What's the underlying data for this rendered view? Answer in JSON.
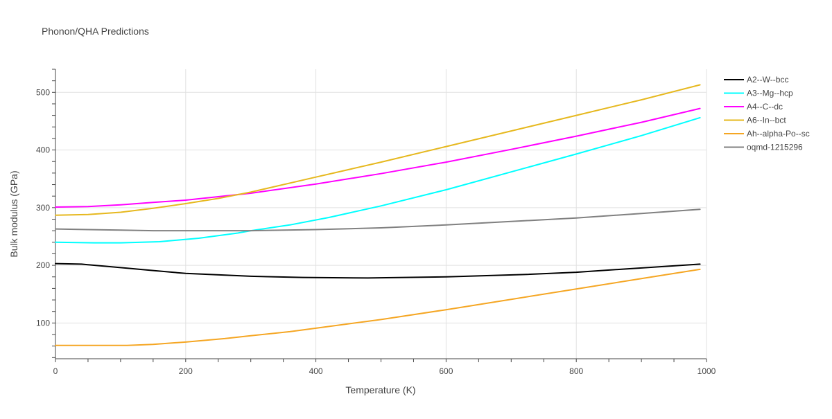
{
  "chart_data": {
    "type": "line",
    "title": "Phonon/QHA Predictions",
    "xlabel": "Temperature (K)",
    "ylabel": "Bulk modulus (GPa)",
    "xlim": [
      0,
      1000
    ],
    "ylim": [
      38,
      540
    ],
    "xticks": [
      0,
      200,
      400,
      600,
      800,
      1000
    ],
    "yticks": [
      100,
      200,
      300,
      400,
      500
    ],
    "xtick_labels": [
      "0",
      "200",
      "400",
      "600",
      "800",
      "1000"
    ],
    "ytick_labels": [
      "100",
      "200",
      "300",
      "400",
      "500"
    ],
    "grid": true,
    "legend_position": "top-right",
    "series": [
      {
        "name": "A2--W--bcc",
        "color": "#000000",
        "x": [
          0,
          40,
          100,
          150,
          200,
          300,
          380,
          480,
          600,
          720,
          800,
          880,
          990
        ],
        "y": [
          203,
          202,
          196,
          191,
          186,
          181,
          179,
          178,
          180,
          184,
          188,
          194,
          202
        ]
      },
      {
        "name": "A3--Mg--hcp",
        "color": "#00ffff",
        "x": [
          0,
          60,
          100,
          160,
          220,
          280,
          300,
          360,
          420,
          500,
          600,
          700,
          800,
          900,
          990
        ],
        "y": [
          240,
          239,
          239,
          241,
          247,
          256,
          260,
          270,
          283,
          303,
          331,
          362,
          393,
          425,
          456
        ]
      },
      {
        "name": "A4--C--dc",
        "color": "#ff00ff",
        "x": [
          0,
          50,
          100,
          150,
          200,
          250,
          300,
          400,
          500,
          600,
          700,
          800,
          900,
          990
        ],
        "y": [
          301,
          302,
          305,
          309,
          313,
          319,
          325,
          341,
          359,
          379,
          401,
          424,
          448,
          472
        ]
      },
      {
        "name": "A6--In--bct",
        "color": "#e6b81e",
        "x": [
          0,
          50,
          100,
          150,
          200,
          250,
          300,
          400,
          500,
          600,
          700,
          800,
          900,
          990
        ],
        "y": [
          287,
          288,
          292,
          299,
          307,
          316,
          327,
          353,
          379,
          406,
          433,
          460,
          487,
          513
        ]
      },
      {
        "name": "Ah--alpha-Po--sc",
        "color": "#f5a623",
        "x": [
          0,
          50,
          110,
          150,
          200,
          260,
          300,
          360,
          400,
          500,
          600,
          700,
          800,
          900,
          990
        ],
        "y": [
          61,
          61,
          61,
          63,
          67,
          73,
          78,
          85,
          91,
          106,
          123,
          141,
          159,
          177,
          193
        ]
      },
      {
        "name": "oqmd-1215296",
        "color": "#808080",
        "x": [
          0,
          50,
          100,
          150,
          200,
          300,
          400,
          500,
          600,
          700,
          800,
          900,
          990
        ],
        "y": [
          263,
          262,
          261,
          260,
          260,
          260,
          262,
          265,
          270,
          276,
          282,
          290,
          297
        ]
      }
    ]
  }
}
